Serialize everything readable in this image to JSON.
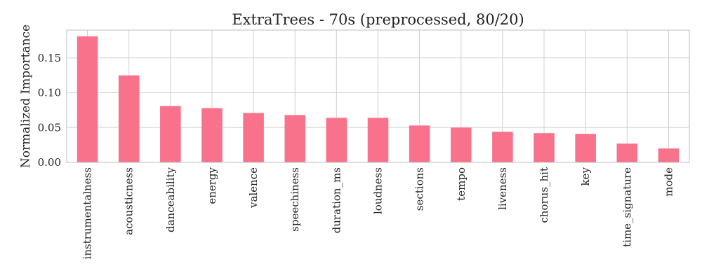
{
  "chart_data": {
    "type": "bar",
    "title": "ExtraTrees - 70s (preprocessed, 80/20)",
    "xlabel": "",
    "ylabel": "Normalized Importance",
    "categories": [
      "instrumentalness",
      "acousticness",
      "danceability",
      "energy",
      "valence",
      "speechiness",
      "duration_ms",
      "loudness",
      "sections",
      "tempo",
      "liveness",
      "chorus_hit",
      "key",
      "time_signature",
      "mode"
    ],
    "values": [
      0.181,
      0.125,
      0.081,
      0.078,
      0.071,
      0.068,
      0.064,
      0.064,
      0.053,
      0.05,
      0.044,
      0.042,
      0.041,
      0.027,
      0.02
    ],
    "ylim": [
      0,
      0.19
    ],
    "yticks": [
      0.0,
      0.05,
      0.1,
      0.15
    ],
    "ytick_labels": [
      "0.00",
      "0.05",
      "0.10",
      "0.15"
    ],
    "grid": true,
    "legend": "none",
    "colors": {
      "bar": "#f7728a",
      "grid": "#cfcfcf",
      "frame": "#c8c8c8",
      "text": "#222222",
      "background": "#ffffff"
    }
  }
}
